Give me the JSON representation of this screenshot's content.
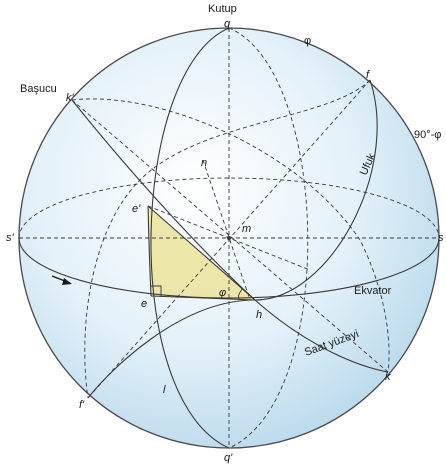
{
  "labels": {
    "pole": "Kutup",
    "zenith": "Başucu",
    "phi_top": "φ",
    "colat": "90°-φ",
    "horizon": "Ufuk",
    "equator": "Ekvator",
    "hour_plane": "Saat yüzeyi",
    "q": "q",
    "q_prime": "q'",
    "k_prime": "k'",
    "k": "k",
    "f": "f",
    "f_prime": "f'",
    "s": "s",
    "s_prime": "s'",
    "n": "n",
    "m": "m",
    "e_prime": "e'",
    "e": "e",
    "h": "h",
    "l": "l",
    "phi_angle": "φ"
  },
  "colors": {
    "sphere_fill": "#cfe6f3",
    "sphere_edge": "#4a4a4a",
    "triangle_fill": "#ece3a0",
    "line": "#3a3a3a"
  }
}
